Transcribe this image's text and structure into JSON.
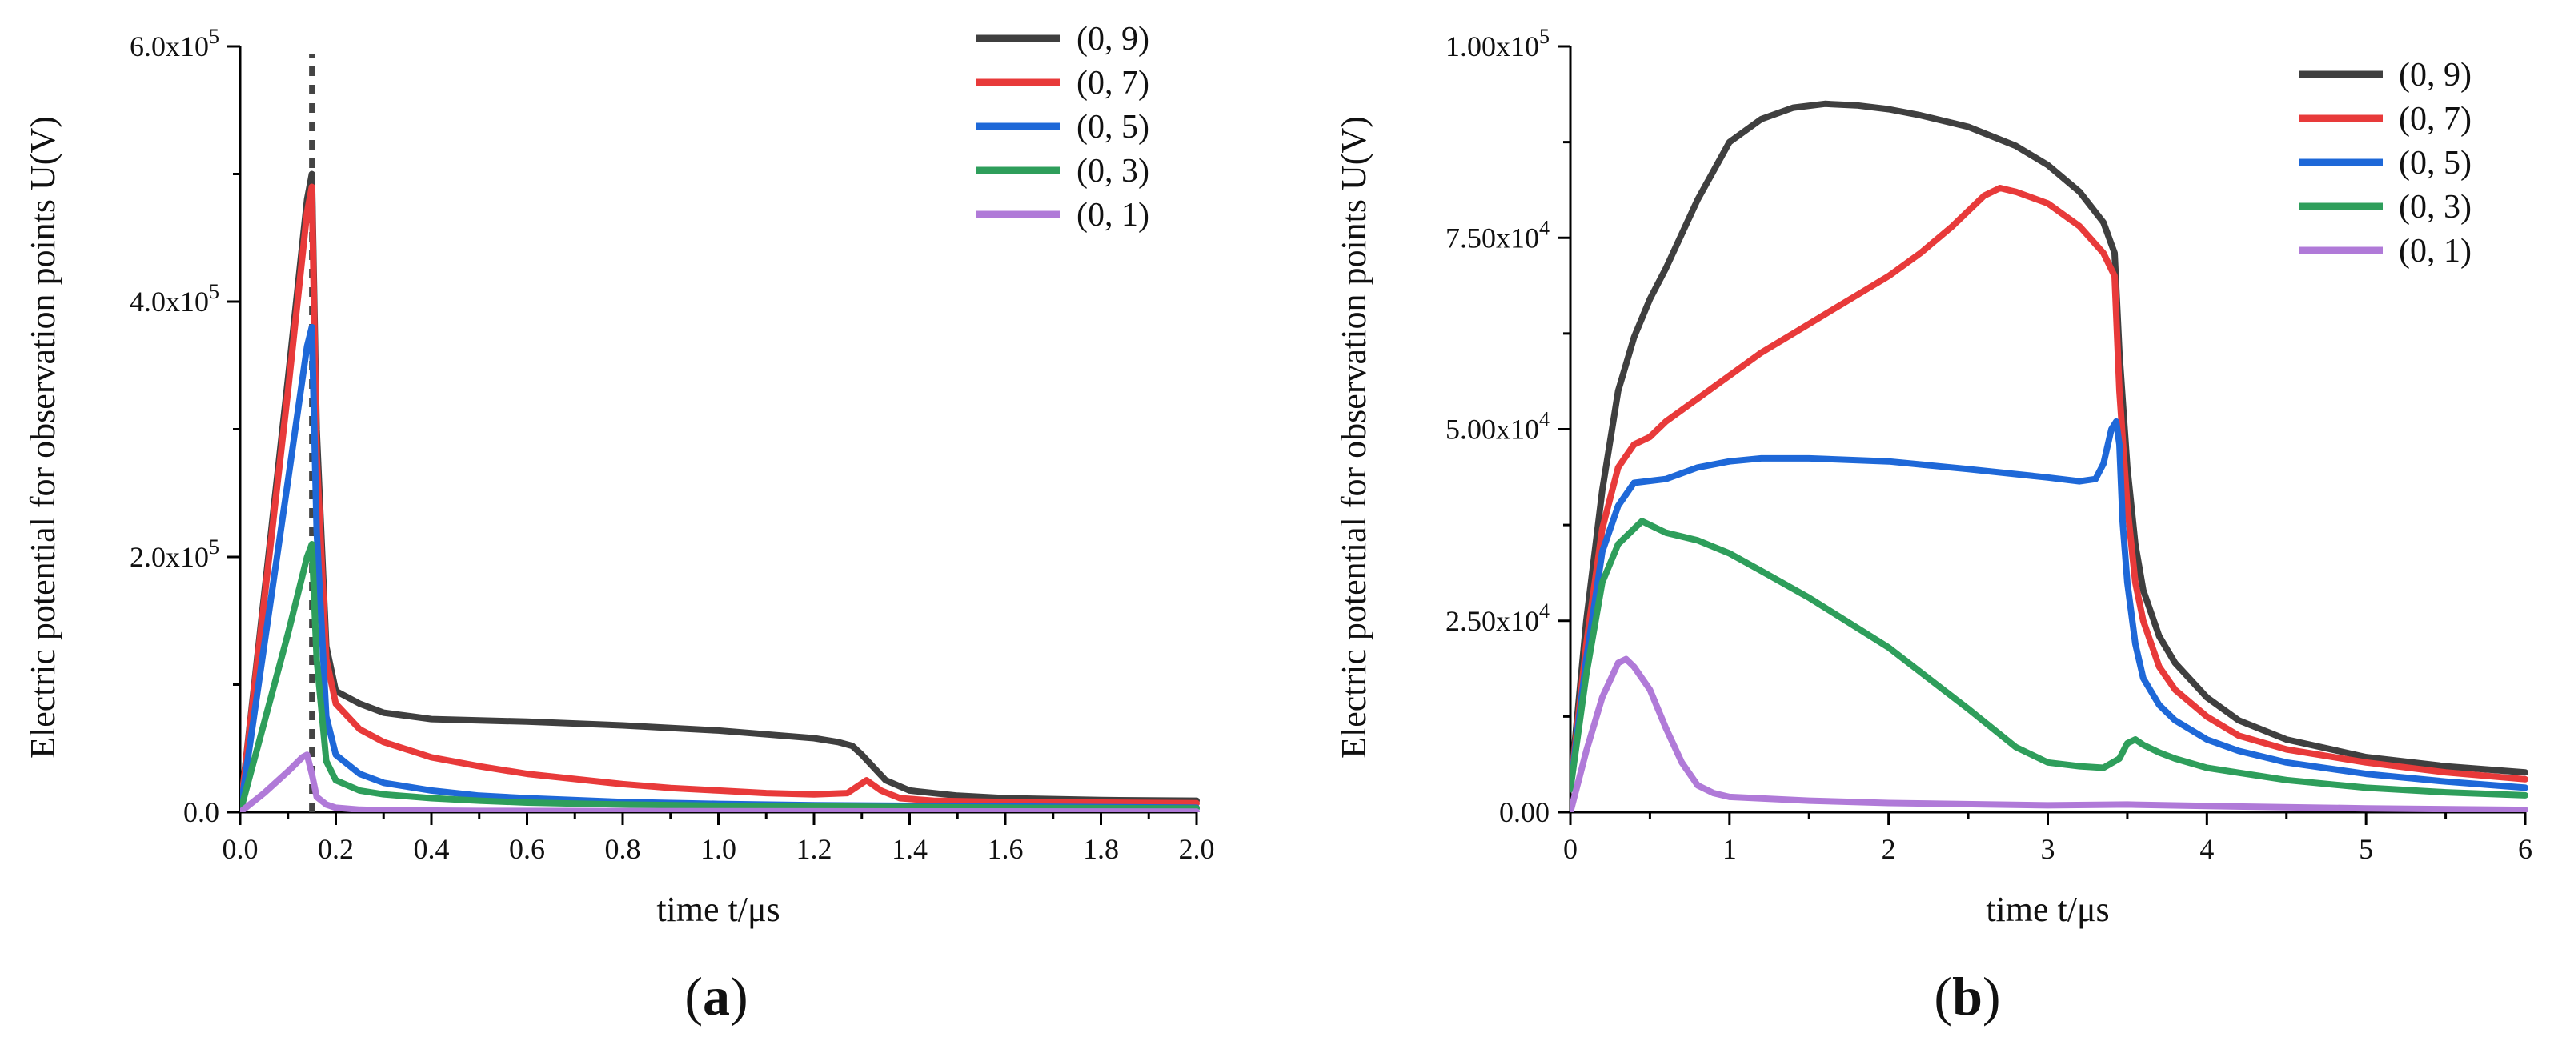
{
  "chart_data": [
    {
      "type": "line",
      "panel_label": "a",
      "title": "",
      "xlabel": "time  t/μs",
      "ylabel": "Electric potential for observation points U(V)",
      "xlim": [
        0,
        2.0
      ],
      "ylim": [
        0,
        600000
      ],
      "x_ticks": [
        0,
        0.2,
        0.4,
        0.6,
        0.8,
        1.0,
        1.2,
        1.4,
        1.6,
        1.8,
        2.0
      ],
      "x_tick_labels": [
        "0.0",
        "0.2",
        "0.4",
        "0.6",
        "0.8",
        "1.0",
        "1.2",
        "1.4",
        "1.6",
        "1.8",
        "2.0"
      ],
      "y_ticks": [
        0,
        200000,
        400000,
        600000
      ],
      "y_tick_labels": [
        {
          "mantissa": "0.0",
          "exp": ""
        },
        {
          "mantissa": "2.0x10",
          "exp": "5"
        },
        {
          "mantissa": "4.0x10",
          "exp": "5"
        },
        {
          "mantissa": "6.0x10",
          "exp": "5"
        }
      ],
      "vertical_marker_x": 0.15,
      "grid": false,
      "legend_position": "top-right",
      "series": [
        {
          "name": "(0, 9)",
          "color": "#3f3f3f",
          "x": [
            0,
            0.05,
            0.1,
            0.14,
            0.15,
            0.16,
            0.18,
            0.2,
            0.25,
            0.3,
            0.4,
            0.6,
            0.8,
            1.0,
            1.1,
            1.2,
            1.25,
            1.28,
            1.3,
            1.35,
            1.4,
            1.5,
            1.6,
            1.8,
            2.0
          ],
          "y": [
            0,
            170000,
            340000,
            480000,
            500000,
            300000,
            130000,
            95000,
            85000,
            78000,
            73000,
            71000,
            68000,
            64000,
            61000,
            58000,
            55000,
            52000,
            45000,
            25000,
            17000,
            13000,
            11000,
            9500,
            9000
          ]
        },
        {
          "name": "(0, 7)",
          "color": "#e83a3a",
          "x": [
            0,
            0.05,
            0.1,
            0.14,
            0.15,
            0.16,
            0.18,
            0.2,
            0.25,
            0.3,
            0.4,
            0.5,
            0.6,
            0.7,
            0.8,
            0.9,
            1.0,
            1.1,
            1.2,
            1.27,
            1.31,
            1.34,
            1.38,
            1.45,
            1.6,
            1.8,
            2.0
          ],
          "y": [
            0,
            165000,
            330000,
            470000,
            490000,
            280000,
            120000,
            85000,
            65000,
            55000,
            43000,
            36000,
            30000,
            26000,
            22000,
            19000,
            17000,
            15000,
            14000,
            15000,
            25000,
            17000,
            11000,
            9000,
            8000,
            7500,
            7000
          ]
        },
        {
          "name": "(0, 5)",
          "color": "#1e68d8",
          "x": [
            0,
            0.05,
            0.1,
            0.14,
            0.15,
            0.16,
            0.18,
            0.2,
            0.25,
            0.3,
            0.4,
            0.5,
            0.6,
            0.8,
            1.0,
            1.2,
            1.4,
            1.6,
            1.8,
            2.0
          ],
          "y": [
            0,
            130000,
            260000,
            365000,
            380000,
            220000,
            75000,
            45000,
            30000,
            23000,
            17000,
            13000,
            11000,
            8000,
            6500,
            5500,
            5000,
            4500,
            4000,
            3500
          ]
        },
        {
          "name": "(0, 3)",
          "color": "#2e9e5b",
          "x": [
            0,
            0.05,
            0.1,
            0.14,
            0.15,
            0.16,
            0.18,
            0.2,
            0.25,
            0.3,
            0.4,
            0.5,
            0.6,
            0.8,
            1.0,
            1.2,
            1.4,
            1.6,
            1.8,
            2.0
          ],
          "y": [
            0,
            70000,
            140000,
            200000,
            210000,
            120000,
            40000,
            25000,
            17000,
            14000,
            11000,
            9000,
            7500,
            6000,
            5000,
            4500,
            4000,
            3500,
            3200,
            3000
          ]
        },
        {
          "name": "(0, 1)",
          "color": "#b07ad8",
          "x": [
            0,
            0.05,
            0.1,
            0.13,
            0.14,
            0.15,
            0.16,
            0.18,
            0.2,
            0.25,
            0.3,
            0.5,
            1.0,
            1.5,
            2.0
          ],
          "y": [
            0,
            15000,
            32000,
            43000,
            45000,
            30000,
            12000,
            6000,
            3500,
            2000,
            1500,
            1000,
            800,
            600,
            500
          ]
        }
      ]
    },
    {
      "type": "line",
      "panel_label": "b",
      "title": "",
      "xlabel": "time  t/μs",
      "ylabel": "Electric potential for observation points U(V)",
      "xlim": [
        0,
        6
      ],
      "ylim": [
        0,
        100000
      ],
      "x_ticks": [
        0,
        1,
        2,
        3,
        4,
        5,
        6
      ],
      "x_tick_labels": [
        "0",
        "1",
        "2",
        "3",
        "4",
        "5",
        "6"
      ],
      "y_ticks": [
        0,
        25000,
        50000,
        75000,
        100000
      ],
      "y_tick_labels": [
        {
          "mantissa": "0.00",
          "exp": ""
        },
        {
          "mantissa": "2.50x10",
          "exp": "4"
        },
        {
          "mantissa": "5.00x10",
          "exp": "4"
        },
        {
          "mantissa": "7.50x10",
          "exp": "4"
        },
        {
          "mantissa": "1.00x10",
          "exp": "5"
        }
      ],
      "grid": false,
      "legend_position": "top-right",
      "series": [
        {
          "name": "(0, 9)",
          "color": "#3f3f3f",
          "x": [
            0,
            0.1,
            0.2,
            0.3,
            0.4,
            0.5,
            0.6,
            0.8,
            1.0,
            1.2,
            1.4,
            1.6,
            1.8,
            2.0,
            2.2,
            2.5,
            2.8,
            3.0,
            3.2,
            3.35,
            3.42,
            3.45,
            3.5,
            3.55,
            3.6,
            3.7,
            3.8,
            4.0,
            4.2,
            4.5,
            5.0,
            5.5,
            6.0
          ],
          "y": [
            3000,
            25000,
            42000,
            55000,
            62000,
            67000,
            71000,
            80000,
            87500,
            90500,
            92000,
            92500,
            92300,
            91800,
            91000,
            89500,
            87000,
            84500,
            81000,
            77000,
            73000,
            60000,
            45000,
            35000,
            29000,
            23000,
            19500,
            15000,
            12000,
            9500,
            7200,
            6000,
            5200
          ]
        },
        {
          "name": "(0, 7)",
          "color": "#e83a3a",
          "x": [
            0,
            0.1,
            0.2,
            0.3,
            0.4,
            0.5,
            0.6,
            0.8,
            1.0,
            1.2,
            1.4,
            1.6,
            1.8,
            2.0,
            2.2,
            2.4,
            2.6,
            2.7,
            2.8,
            3.0,
            3.2,
            3.35,
            3.42,
            3.45,
            3.5,
            3.55,
            3.6,
            3.7,
            3.8,
            4.0,
            4.2,
            4.5,
            5.0,
            5.5,
            6.0
          ],
          "y": [
            3000,
            22000,
            37000,
            45000,
            48000,
            49000,
            51000,
            54000,
            57000,
            60000,
            62500,
            65000,
            67500,
            70000,
            73000,
            76500,
            80500,
            81500,
            81000,
            79500,
            76500,
            73000,
            70000,
            55000,
            40000,
            30000,
            25000,
            19000,
            16000,
            12500,
            10000,
            8200,
            6500,
            5200,
            4300
          ]
        },
        {
          "name": "(0, 5)",
          "color": "#1e68d8",
          "x": [
            0,
            0.1,
            0.2,
            0.3,
            0.4,
            0.6,
            0.8,
            1.0,
            1.2,
            1.5,
            2.0,
            2.5,
            3.0,
            3.2,
            3.3,
            3.35,
            3.4,
            3.43,
            3.45,
            3.47,
            3.5,
            3.55,
            3.6,
            3.7,
            3.8,
            4.0,
            4.2,
            4.5,
            5.0,
            5.5,
            6.0
          ],
          "y": [
            3000,
            20000,
            34000,
            40000,
            43000,
            43500,
            45000,
            45800,
            46200,
            46200,
            45800,
            44800,
            43700,
            43200,
            43500,
            45500,
            50000,
            51000,
            48000,
            38000,
            30000,
            22000,
            17500,
            14000,
            12000,
            9500,
            8000,
            6500,
            5000,
            4000,
            3200
          ]
        },
        {
          "name": "(0, 3)",
          "color": "#2e9e5b",
          "x": [
            0,
            0.1,
            0.2,
            0.3,
            0.4,
            0.45,
            0.5,
            0.6,
            0.8,
            1.0,
            1.2,
            1.5,
            2.0,
            2.5,
            2.8,
            3.0,
            3.2,
            3.35,
            3.45,
            3.5,
            3.55,
            3.6,
            3.7,
            3.8,
            4.0,
            4.5,
            5.0,
            5.5,
            6.0
          ],
          "y": [
            3000,
            18000,
            30000,
            35000,
            37000,
            38000,
            37500,
            36500,
            35500,
            33800,
            31500,
            28000,
            21500,
            13500,
            8500,
            6500,
            6000,
            5800,
            7000,
            9000,
            9500,
            8800,
            7800,
            7000,
            5800,
            4200,
            3200,
            2600,
            2200
          ]
        },
        {
          "name": "(0, 1)",
          "color": "#b07ad8",
          "x": [
            0,
            0.1,
            0.2,
            0.3,
            0.35,
            0.4,
            0.5,
            0.6,
            0.7,
            0.8,
            0.9,
            1.0,
            1.5,
            2.0,
            3.0,
            3.5,
            4.0,
            5.0,
            6.0
          ],
          "y": [
            0,
            8000,
            15000,
            19500,
            20000,
            19000,
            16000,
            11000,
            6500,
            3500,
            2500,
            2000,
            1500,
            1200,
            900,
            1000,
            800,
            500,
            300
          ]
        }
      ]
    }
  ]
}
